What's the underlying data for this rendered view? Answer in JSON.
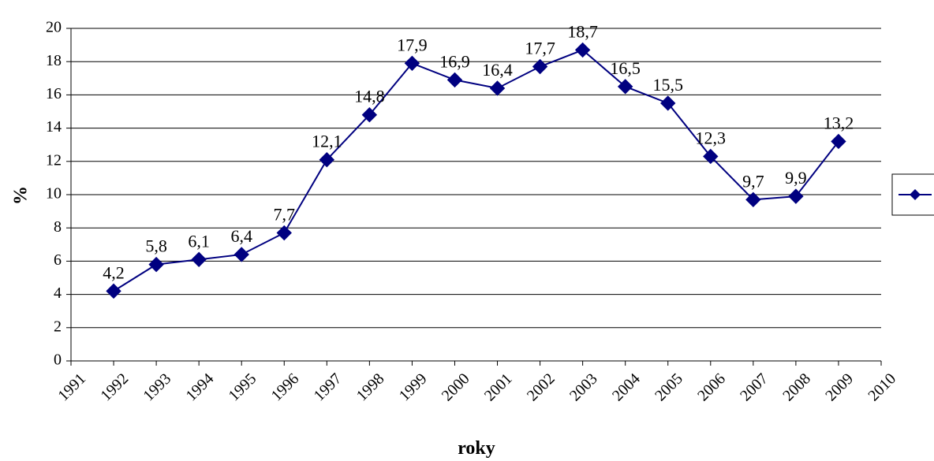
{
  "chart_data": {
    "type": "line",
    "title": "",
    "xlabel": "roky",
    "ylabel": "%",
    "xlim": [
      1991,
      2010
    ],
    "ylim": [
      0,
      20
    ],
    "y_ticks": [
      "0",
      "2",
      "4",
      "6",
      "8",
      "10",
      "12",
      "14",
      "16",
      "18",
      "20"
    ],
    "x_ticks": [
      "1991",
      "1992",
      "1993",
      "1994",
      "1995",
      "1996",
      "1997",
      "1998",
      "1999",
      "2000",
      "2001",
      "2002",
      "2003",
      "2004",
      "2005",
      "2006",
      "2007",
      "2008",
      "2009",
      "2010"
    ],
    "grid": true,
    "legend": "right",
    "series": [
      {
        "color": "#000080",
        "marker": "diamond",
        "x": [
          1992,
          1993,
          1994,
          1995,
          1996,
          1997,
          1998,
          1999,
          2000,
          2001,
          2002,
          2003,
          2004,
          2005,
          2006,
          2007,
          2008,
          2009
        ],
        "values": [
          4.2,
          5.8,
          6.1,
          6.4,
          7.7,
          12.1,
          14.8,
          17.9,
          16.9,
          16.4,
          17.7,
          18.7,
          16.5,
          15.5,
          12.3,
          9.7,
          9.9,
          13.2
        ],
        "labels": [
          "4,2",
          "5,8",
          "6,1",
          "6,4",
          "7,7",
          "12,1",
          "14,8",
          "17,9",
          "16,9",
          "16,4",
          "17,7",
          "18,7",
          "16,5",
          "15,5",
          "12,3",
          "9,7",
          "9,9",
          "13,2"
        ]
      }
    ]
  }
}
